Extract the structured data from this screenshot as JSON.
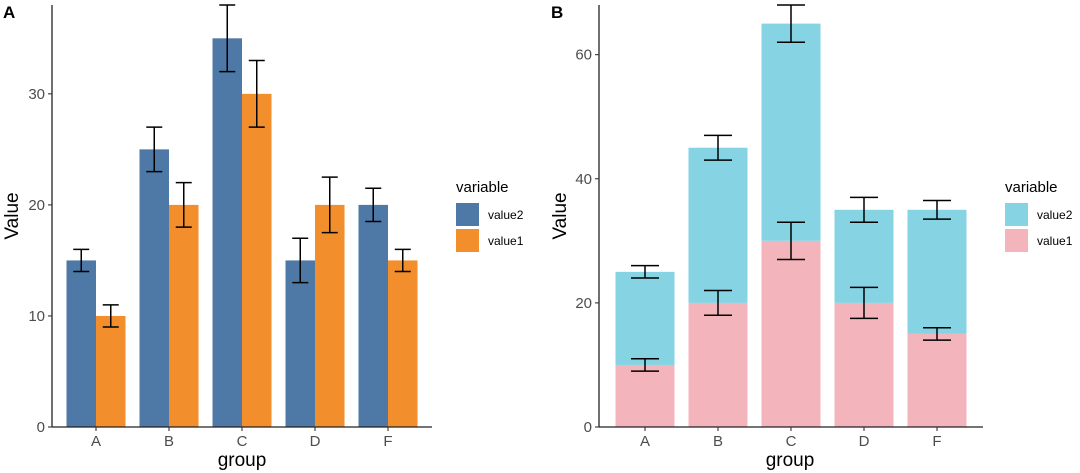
{
  "chart_data": [
    {
      "panel": "A",
      "type": "bar",
      "mode": "dodge",
      "title": "",
      "xlabel": "group",
      "ylabel": "Value",
      "categories": [
        "A",
        "B",
        "C",
        "D",
        "F"
      ],
      "ylim": [
        0,
        38
      ],
      "yticks": [
        0,
        10,
        20,
        30
      ],
      "grid": false,
      "legend": {
        "title": "variable",
        "placement": "right",
        "entries": [
          "value2",
          "value1"
        ]
      },
      "series": [
        {
          "name": "value2",
          "color": "#4E79A7",
          "values": [
            15,
            25,
            35,
            15,
            20
          ],
          "err_low": [
            14,
            23,
            32,
            13,
            18.5
          ],
          "err_high": [
            16,
            27,
            38,
            17,
            21.5
          ]
        },
        {
          "name": "value1",
          "color": "#F28E2B",
          "values": [
            10,
            20,
            30,
            20,
            15
          ],
          "err_low": [
            9,
            18,
            27,
            17.5,
            14
          ],
          "err_high": [
            11,
            22,
            33,
            22.5,
            16
          ]
        }
      ]
    },
    {
      "panel": "B",
      "type": "bar",
      "mode": "stack",
      "title": "",
      "xlabel": "group",
      "ylabel": "Value",
      "categories": [
        "A",
        "B",
        "C",
        "D",
        "F"
      ],
      "ylim": [
        0,
        68
      ],
      "yticks": [
        0,
        20,
        40,
        60
      ],
      "grid": false,
      "legend": {
        "title": "variable",
        "placement": "right",
        "entries": [
          "value2",
          "value1"
        ]
      },
      "series": [
        {
          "name": "value1",
          "color": "#F4B4BC",
          "values": [
            10,
            20,
            30,
            20,
            15
          ],
          "err_low": [
            9,
            18,
            27,
            17.5,
            14
          ],
          "err_high": [
            11,
            22,
            33,
            22.5,
            16
          ]
        },
        {
          "name": "value2",
          "color": "#86D3E3",
          "values": [
            15,
            25,
            35,
            15,
            20
          ],
          "err_low": [
            24,
            43,
            62,
            33,
            33.5
          ],
          "err_high": [
            26,
            47,
            68,
            37,
            36.5
          ]
        }
      ]
    }
  ]
}
